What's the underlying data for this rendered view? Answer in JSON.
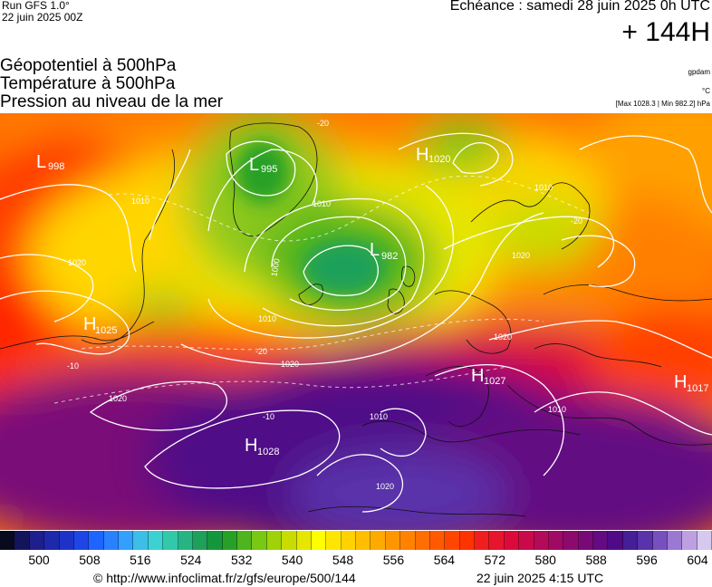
{
  "header": {
    "run": "Run GFS 1.0°",
    "run_date": "22 juin 2025 00Z",
    "valid_time": "Echéance : samedi 28 juin 2025 0h UTC",
    "lead_time": "+ 144H"
  },
  "parameters": {
    "line1": "Géopotentiel à 500hPa",
    "line2": "Température à 500hPa",
    "line3": "Pression au niveau de la mer"
  },
  "units": {
    "geopotential": "gpdam",
    "temperature": "°C",
    "pressure_range": "[Max 1028.3 | Min 982.2] hPa"
  },
  "pressure_centers": [
    {
      "type": "L",
      "value": "998"
    },
    {
      "type": "L",
      "value": "995"
    },
    {
      "type": "H",
      "value": "1020"
    },
    {
      "type": "L",
      "value": "982"
    },
    {
      "type": "H",
      "value": "1025"
    },
    {
      "type": "H",
      "value": "1027"
    },
    {
      "type": "H",
      "value": "1017"
    },
    {
      "type": "H",
      "value": "1028"
    }
  ],
  "isobar_labels": [
    "1010",
    "1020",
    "1000",
    "1010",
    "1020",
    "1020",
    "1010",
    "1010",
    "1020",
    "1010",
    "1020",
    "1010",
    "1020"
  ],
  "isotherm_labels": [
    "-20",
    "-20",
    "-10",
    "-10",
    "-20"
  ],
  "colorbar": {
    "colors": [
      "#0a0a1e",
      "#14145a",
      "#1e1e8c",
      "#1e28aa",
      "#1e32c8",
      "#1e46e6",
      "#1e64ff",
      "#2882ff",
      "#32a0ff",
      "#3cbee6",
      "#3cd2d2",
      "#32c8aa",
      "#28b482",
      "#1ea05a",
      "#14963c",
      "#28a028",
      "#50b41e",
      "#78c814",
      "#a0d20a",
      "#c8dc00",
      "#e6e600",
      "#ffff00",
      "#ffe600",
      "#ffd200",
      "#ffbe00",
      "#ffaa00",
      "#ff9600",
      "#ff8200",
      "#ff6e00",
      "#ff5a00",
      "#ff4600",
      "#ff3200",
      "#f01e1e",
      "#e6142d",
      "#dc0a3c",
      "#c80a4b",
      "#b40a5a",
      "#a00a64",
      "#8c0a6e",
      "#780a78",
      "#640a82",
      "#500a87",
      "#461e96",
      "#5a32aa",
      "#7850be",
      "#9b78d2",
      "#bea0e1",
      "#d7c8f0"
    ],
    "tick_labels": [
      "500",
      "508",
      "516",
      "524",
      "532",
      "540",
      "548",
      "556",
      "564",
      "572",
      "580",
      "588",
      "596",
      "604"
    ]
  },
  "footer": {
    "url": "© http://www.infoclimat.fr/z/gfs/europe/500/144",
    "date": "22 juin 2025  4:15 UTC"
  }
}
